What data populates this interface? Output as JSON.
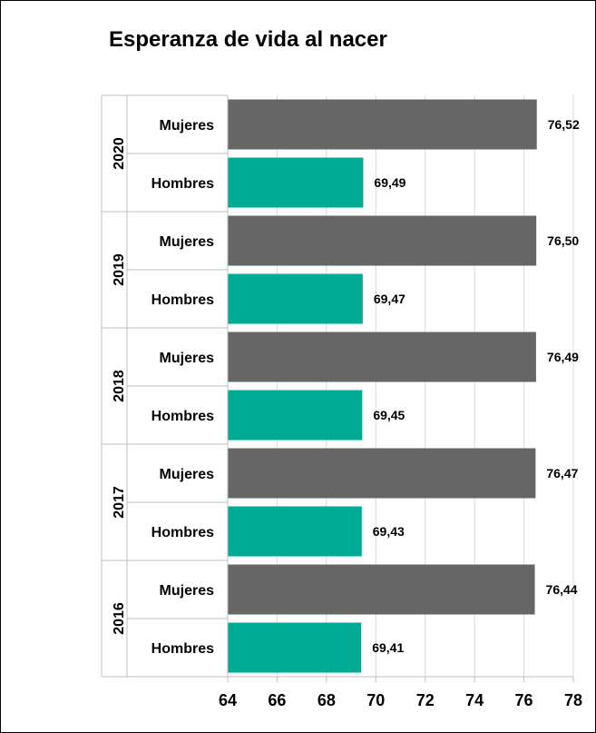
{
  "chart_data": {
    "type": "bar",
    "orientation": "horizontal",
    "title": "Esperanza de vida al nacer",
    "xlim": [
      64,
      78
    ],
    "x_ticks": [
      "64",
      "66",
      "68",
      "70",
      "72",
      "74",
      "76",
      "78"
    ],
    "grid": true,
    "legend": "none",
    "colors": {
      "Mujeres": "#666666",
      "Hombres": "#00ab96"
    },
    "groups": [
      {
        "year": "2020",
        "bars": [
          {
            "label": "Mujeres",
            "value": 76.52,
            "display": "76,52"
          },
          {
            "label": "Hombres",
            "value": 69.49,
            "display": "69,49"
          }
        ]
      },
      {
        "year": "2019",
        "bars": [
          {
            "label": "Mujeres",
            "value": 76.5,
            "display": "76,50"
          },
          {
            "label": "Hombres",
            "value": 69.47,
            "display": "69,47"
          }
        ]
      },
      {
        "year": "2018",
        "bars": [
          {
            "label": "Mujeres",
            "value": 76.49,
            "display": "76,49"
          },
          {
            "label": "Hombres",
            "value": 69.45,
            "display": "69,45"
          }
        ]
      },
      {
        "year": "2017",
        "bars": [
          {
            "label": "Mujeres",
            "value": 76.47,
            "display": "76,47"
          },
          {
            "label": "Hombres",
            "value": 69.43,
            "display": "69,43"
          }
        ]
      },
      {
        "year": "2016",
        "bars": [
          {
            "label": "Mujeres",
            "value": 76.44,
            "display": "76,44"
          },
          {
            "label": "Hombres",
            "value": 69.41,
            "display": "69,41"
          }
        ]
      }
    ]
  }
}
